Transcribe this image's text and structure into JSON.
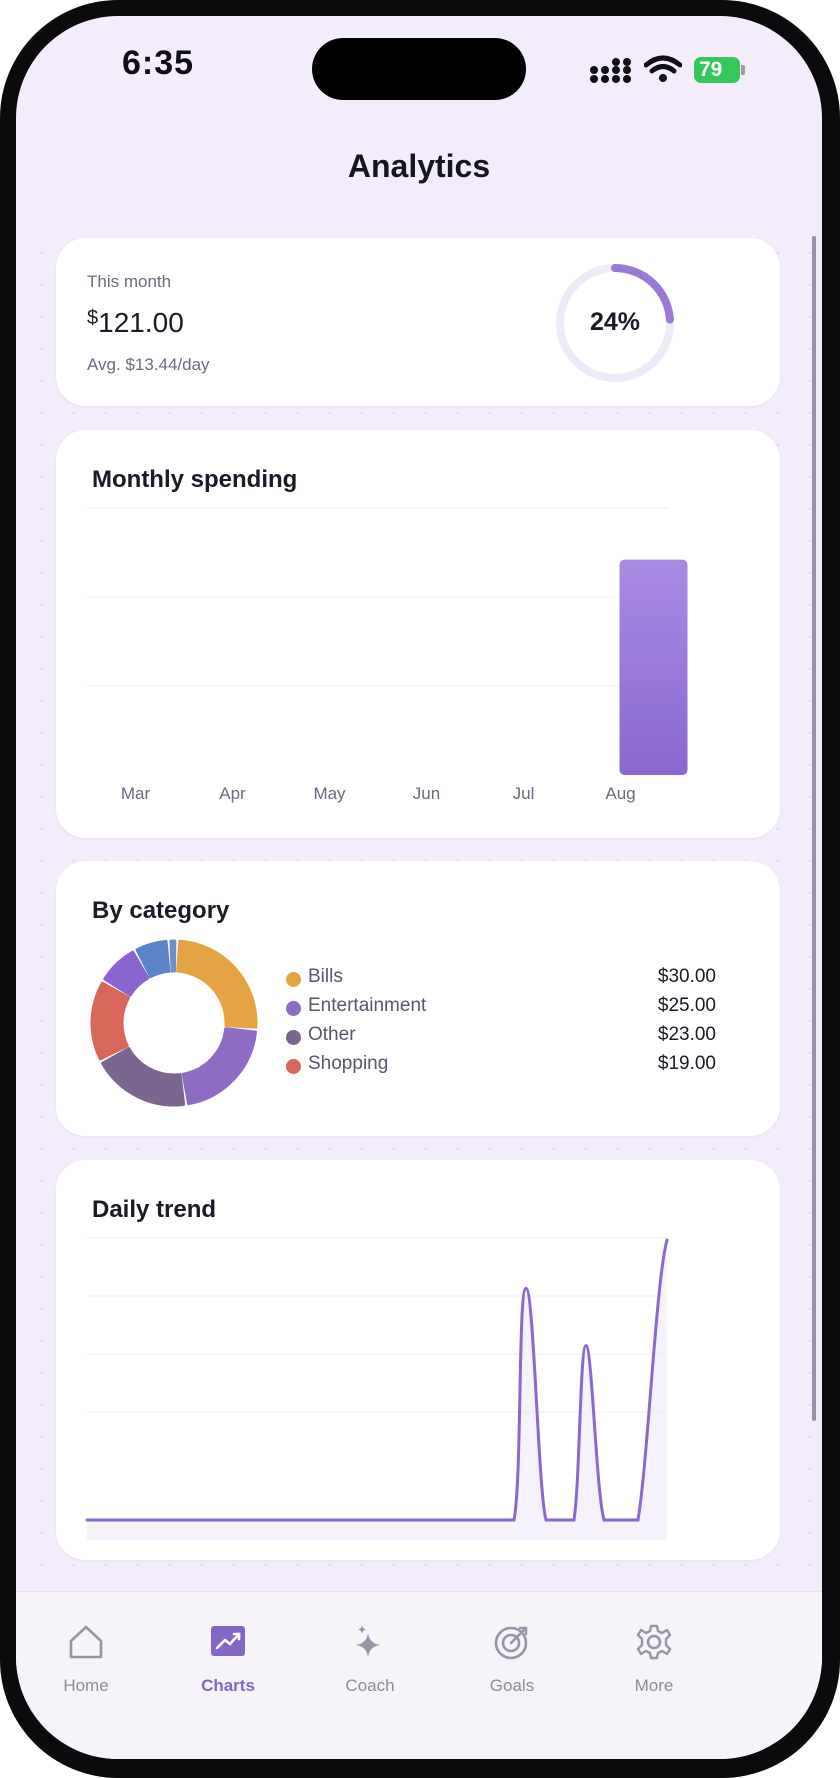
{
  "status_bar": {
    "time": "6:35",
    "battery": "79"
  },
  "header": {
    "title": "Analytics"
  },
  "summary": {
    "label": "This month",
    "currency": "$",
    "amount": "121.00",
    "avg": "Avg. $13.44/day",
    "percent_label": "24%",
    "percent_value": 24
  },
  "monthly": {
    "title": "Monthly spending",
    "chart_data": {
      "type": "bar",
      "categories": [
        "Mar",
        "Apr",
        "May",
        "Jun",
        "Jul",
        "Aug"
      ],
      "values": [
        0,
        0,
        0,
        0,
        0,
        121
      ],
      "ylim": [
        0,
        150
      ],
      "grid": true
    }
  },
  "category": {
    "title": "By category",
    "items": [
      {
        "name": "Bills",
        "amount": "$30.00",
        "color": "#e5a443"
      },
      {
        "name": "Entertainment",
        "amount": "$25.00",
        "color": "#8e6cc4"
      },
      {
        "name": "Other",
        "amount": "$23.00",
        "color": "#7a6690"
      },
      {
        "name": "Shopping",
        "amount": "$19.00",
        "color": "#d9685a"
      }
    ],
    "chart_data": {
      "type": "pie",
      "labels": [
        "Bills",
        "Entertainment",
        "Other",
        "Shopping",
        "",
        "",
        ""
      ],
      "values": [
        30,
        25,
        23,
        19,
        10,
        8,
        2
      ],
      "colors": [
        "#e5a443",
        "#8e6cc4",
        "#7a6690",
        "#d9685a",
        "#8a65d2",
        "#5b84c8",
        "#6d8fd0"
      ]
    }
  },
  "daily": {
    "title": "Daily trend",
    "chart_data": {
      "type": "line",
      "peaks": [
        0.78,
        0.52,
        1.0
      ],
      "grid": true
    }
  },
  "tabs": [
    {
      "label": "Home",
      "icon": "home-icon"
    },
    {
      "label": "Charts",
      "icon": "chart-icon",
      "active": true
    },
    {
      "label": "Coach",
      "icon": "sparkle-icon"
    },
    {
      "label": "Goals",
      "icon": "target-icon"
    },
    {
      "label": "More",
      "icon": "gear-icon"
    }
  ]
}
